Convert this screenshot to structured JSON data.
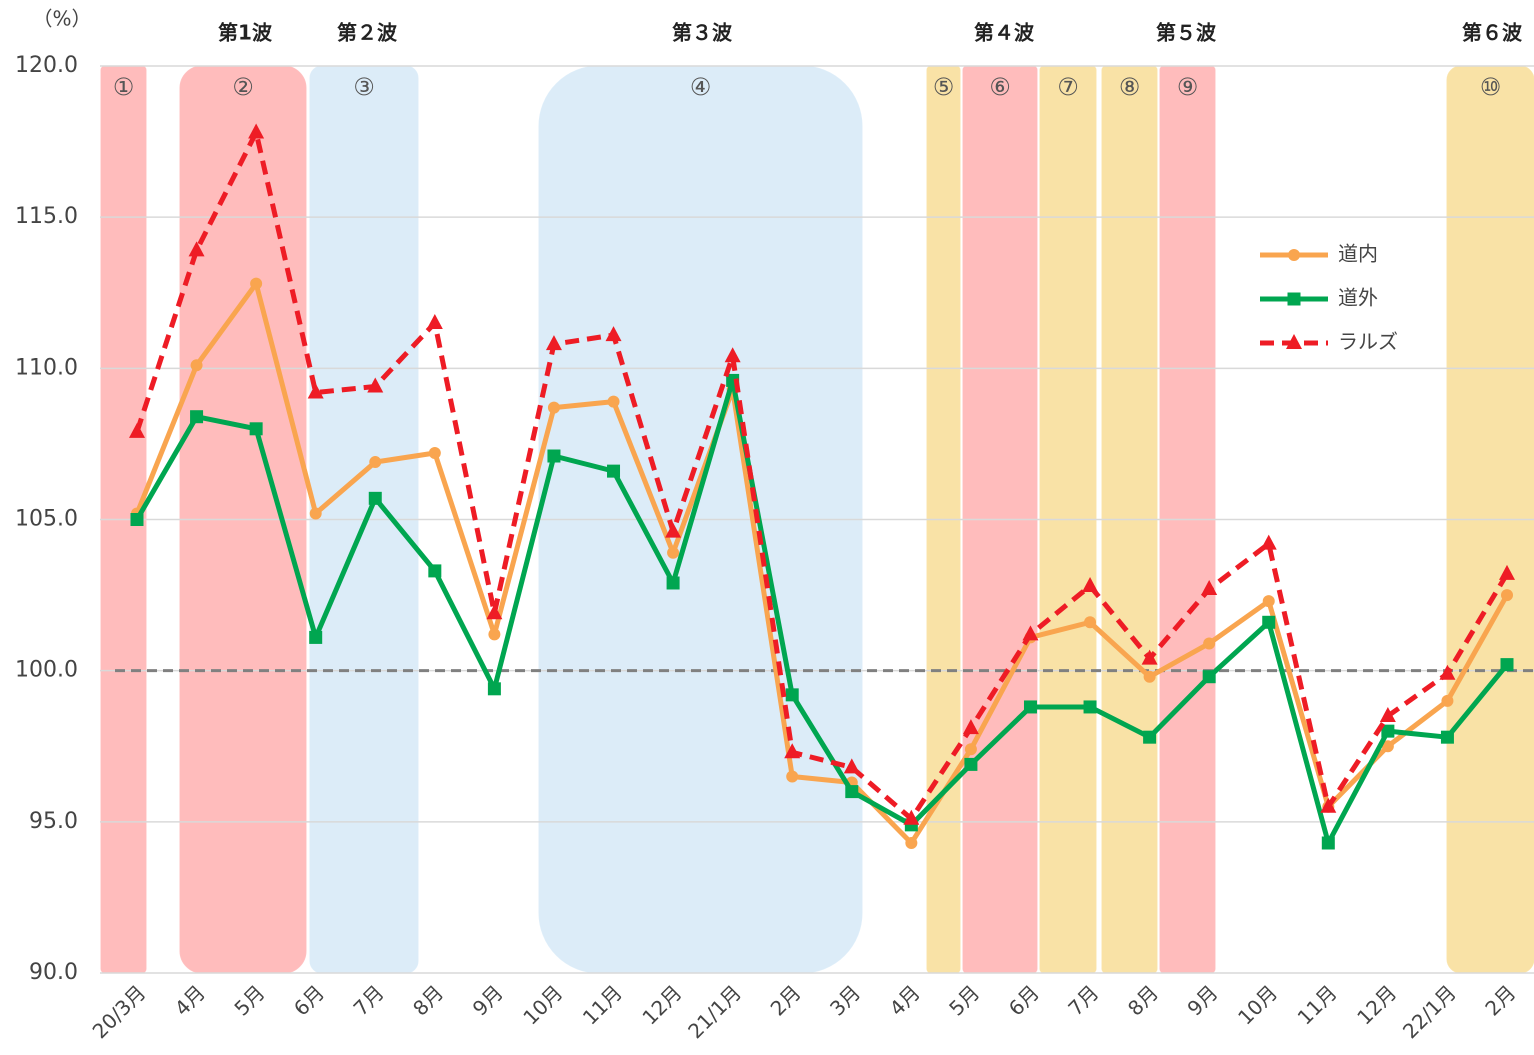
{
  "chart_data": {
    "type": "line",
    "unit_label": "（%）",
    "categories": [
      "20/3月",
      "4月",
      "5月",
      "6月",
      "7月",
      "8月",
      "9月",
      "10月",
      "11月",
      "12月",
      "21/1月",
      "2月",
      "3月",
      "4月",
      "5月",
      "6月",
      "7月",
      "8月",
      "9月",
      "10月",
      "11月",
      "12月",
      "22/1月",
      "2月"
    ],
    "series": [
      {
        "name": "道内",
        "color": "#f9a54f",
        "marker": "circle",
        "dash": false,
        "values": [
          105.2,
          110.1,
          112.8,
          105.2,
          106.9,
          107.2,
          101.2,
          108.7,
          108.9,
          103.9,
          109.3,
          96.5,
          96.3,
          94.3,
          97.4,
          101.1,
          101.6,
          99.8,
          100.9,
          102.3,
          95.5,
          97.5,
          99.0,
          102.5
        ]
      },
      {
        "name": "道外",
        "color": "#00a650",
        "marker": "square",
        "dash": false,
        "values": [
          105.0,
          108.4,
          108.0,
          101.1,
          105.7,
          103.3,
          99.4,
          107.1,
          106.6,
          102.9,
          109.6,
          99.2,
          96.0,
          94.9,
          96.9,
          98.8,
          98.8,
          97.8,
          99.8,
          101.6,
          94.3,
          98.0,
          97.8,
          100.2
        ]
      },
      {
        "name": "ラルズ",
        "color": "#ee1c25",
        "marker": "triangle",
        "dash": true,
        "values": [
          107.9,
          113.9,
          117.8,
          109.2,
          109.4,
          111.5,
          101.9,
          110.8,
          111.1,
          104.6,
          110.4,
          97.3,
          96.8,
          95.1,
          98.1,
          101.2,
          102.8,
          100.4,
          102.7,
          104.2,
          95.5,
          98.5,
          99.9,
          103.2
        ]
      }
    ],
    "ylim": [
      90,
      120
    ],
    "yticks": [
      {
        "value": 90,
        "label": "90.0"
      },
      {
        "value": 95,
        "label": "95.0"
      },
      {
        "value": 100,
        "label": "100.0"
      },
      {
        "value": 105,
        "label": "105.0"
      },
      {
        "value": 110,
        "label": "110.0"
      },
      {
        "value": 115,
        "label": "115.0"
      },
      {
        "value": 120,
        "label": "120.0"
      }
    ],
    "grid": true,
    "reference_line": 100,
    "periods": [
      {
        "label": "①",
        "color": "#ffbcbc"
      },
      {
        "label": "②",
        "color": "#ffbcbc"
      },
      {
        "label": "③",
        "color": "#dcecf8"
      },
      {
        "label": "④",
        "color": "#dcecf8"
      },
      {
        "label": "⑤",
        "color": "#f9e2a6"
      },
      {
        "label": "⑥",
        "color": "#ffbcbc"
      },
      {
        "label": "⑦",
        "color": "#f9e2a6"
      },
      {
        "label": "⑧",
        "color": "#f9e2a6"
      },
      {
        "label": "⑨",
        "color": "#ffbcbc"
      },
      {
        "label": "⑩",
        "color": "#f9e2a6"
      }
    ],
    "waves": [
      "第1波",
      "第２波",
      "第３波",
      "第４波",
      "第５波",
      "第６波"
    ]
  }
}
